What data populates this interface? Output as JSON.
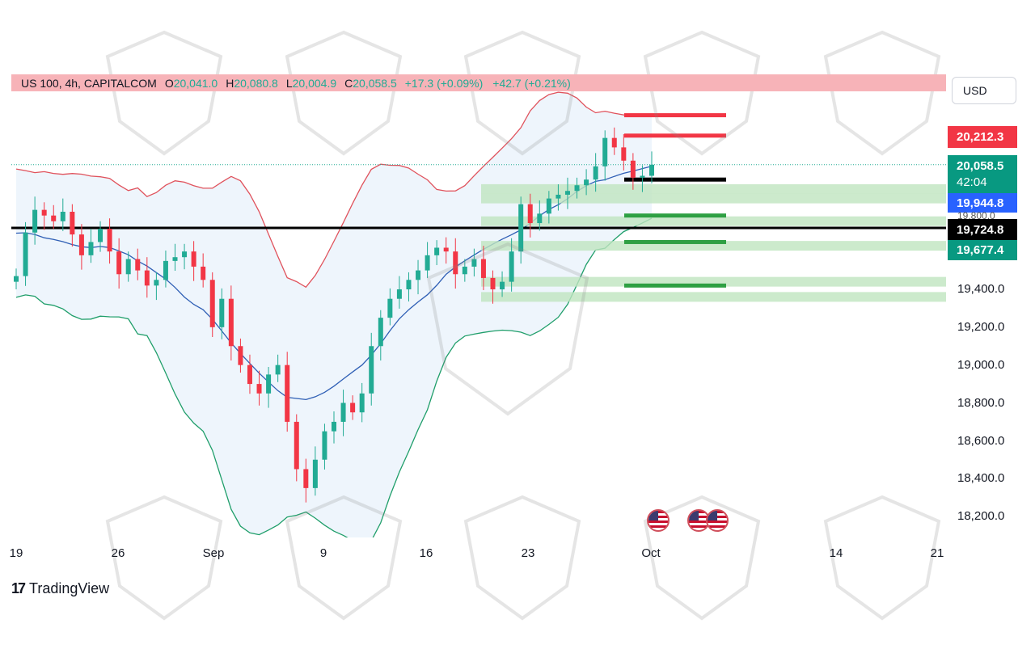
{
  "header": {
    "symbol": "US 100, 4h, CAPITALCOM",
    "o_label": "O",
    "o_value": "20,041.0",
    "h_label": "H",
    "h_value": "20,080.8",
    "l_label": "L",
    "l_value": "20,004.9",
    "c_label": "C",
    "c_value": "20,058.5",
    "change": "+17.3 (+0.09%)",
    "change2": "+42.7 (+0.21%)"
  },
  "currency": "USD",
  "price_tags": {
    "red": "20,212.3",
    "current": "20,058.5",
    "countdown": "42:04",
    "blue": "19,944.8",
    "hidden": "19,800.0",
    "black": "19,724.8",
    "green": "19,677.4"
  },
  "y_axis_labels": [
    "19,400.0",
    "19,200.0",
    "19,000.0",
    "18,800.0",
    "18,600.0",
    "18,400.0",
    "18,200.0"
  ],
  "x_axis_labels": [
    "19",
    "26",
    "Sep",
    "9",
    "16",
    "23",
    "Oct",
    "14",
    "21"
  ],
  "branding": "TradingView",
  "colors": {
    "up": "#22ab94",
    "down": "#f23645",
    "upper_band": "#e0525c",
    "mid_band": "#2f5fb5",
    "lower_band": "#1f9e6a",
    "band_fill": "#eaf3fb"
  },
  "chart_data": {
    "type": "candlestick",
    "symbol": "US 100",
    "interval": "4h",
    "ylim": [
      18150,
      20450
    ],
    "grid": false,
    "indicators": [
      "Bollinger Bands"
    ],
    "price_levels": {
      "resistance": [
        20320,
        20212.3
      ],
      "pivot": 20058.5,
      "support_short": 19980,
      "support_zones": [
        19930,
        19880,
        19760,
        19630,
        19440,
        19360
      ],
      "support_lines": [
        19790,
        19650,
        19420
      ],
      "key_level": 19724.8
    },
    "series_close_approx": [
      19470,
      19700,
      19820,
      19790,
      19760,
      19810,
      19690,
      19580,
      19650,
      19720,
      19600,
      19480,
      19560,
      19500,
      19420,
      19450,
      19550,
      19570,
      19600,
      19520,
      19450,
      19200,
      19350,
      19100,
      19000,
      18900,
      18850,
      18950,
      19000,
      18700,
      18450,
      18350,
      18500,
      18650,
      18700,
      18800,
      18750,
      18850,
      19100,
      19250,
      19350,
      19400,
      19450,
      19500,
      19580,
      19620,
      19600,
      19480,
      19520,
      19560,
      19460,
      19400,
      19440,
      19600,
      19850,
      19750,
      19800,
      19880,
      19900,
      19920,
      19950,
      19980,
      20050,
      20200,
      20150,
      20080,
      19990,
      20000,
      20058.5
    ]
  }
}
